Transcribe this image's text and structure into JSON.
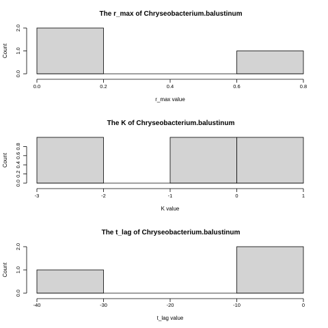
{
  "chart_data": [
    {
      "type": "bar",
      "title": "The r_max of Chryseobacterium.balustinum",
      "xlabel": "r_max value",
      "ylabel": "Count",
      "breaks": [
        0.0,
        0.2,
        0.4,
        0.6,
        0.8
      ],
      "counts": [
        2,
        0,
        0,
        1
      ],
      "xlim": [
        0.0,
        0.8
      ],
      "ylim": [
        0,
        2
      ],
      "xticks": [
        "0.0",
        "0.2",
        "0.4",
        "0.6",
        "0.8"
      ],
      "yticks": [
        "0.0",
        "1.0",
        "2.0"
      ]
    },
    {
      "type": "bar",
      "title": "The K of Chryseobacterium.balustinum",
      "xlabel": "K value",
      "ylabel": "Count",
      "breaks": [
        -3,
        -2,
        -1,
        0,
        1
      ],
      "counts": [
        1,
        0,
        1,
        1
      ],
      "xlim": [
        -3,
        1
      ],
      "ylim": [
        0,
        1
      ],
      "xticks": [
        "-3",
        "-2",
        "-1",
        "0",
        "1"
      ],
      "yticks": [
        "0.0",
        "0.2",
        "0.4",
        "0.6",
        "0.8"
      ]
    },
    {
      "type": "bar",
      "title": "The t_lag of Chryseobacterium.balustinum",
      "xlabel": "t_lag value",
      "ylabel": "Count",
      "breaks": [
        -40,
        -30,
        -20,
        -10,
        0
      ],
      "counts": [
        1,
        0,
        0,
        2
      ],
      "xlim": [
        -40,
        0
      ],
      "ylim": [
        0,
        2
      ],
      "xticks": [
        "-40",
        "-30",
        "-20",
        "-10",
        "0"
      ],
      "yticks": [
        "0.0",
        "1.0",
        "2.0"
      ]
    }
  ]
}
